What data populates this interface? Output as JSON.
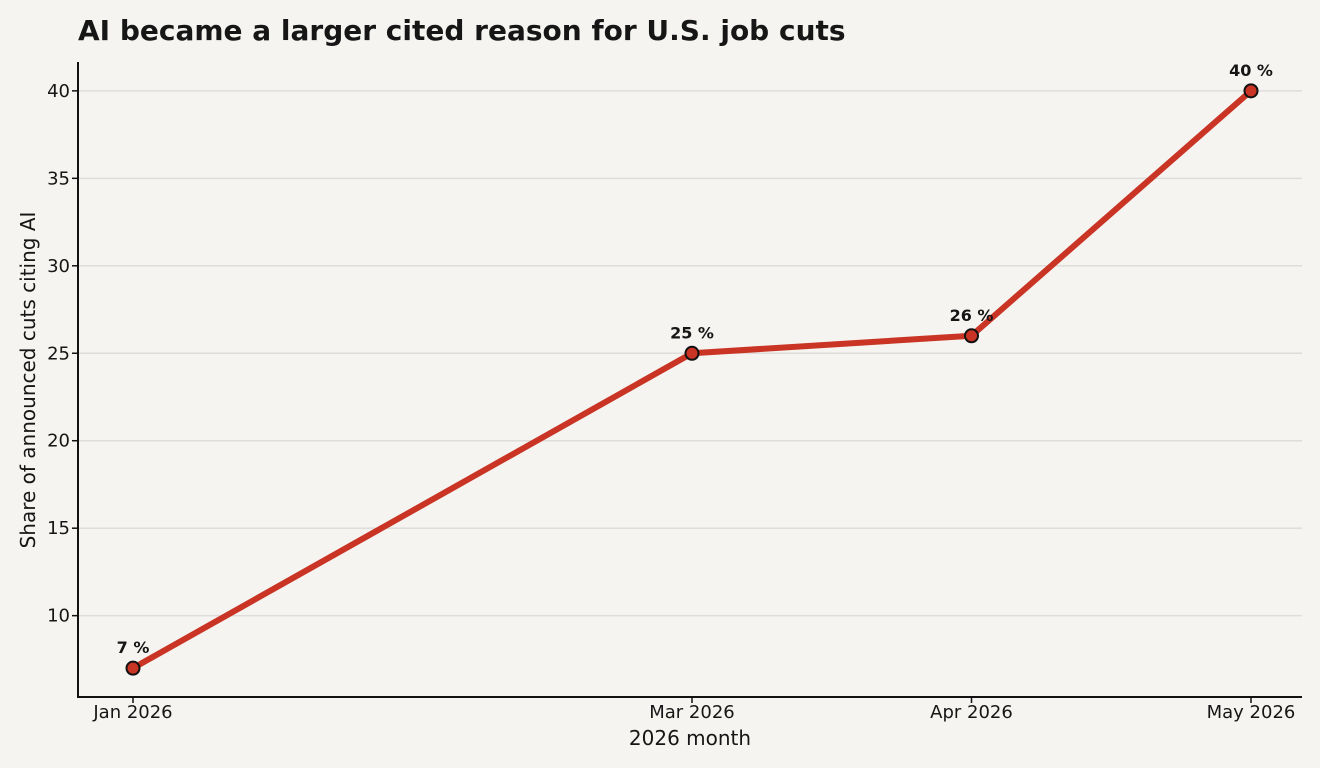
{
  "chart_data": {
    "type": "line",
    "title": "AI became a larger cited reason for U.S. job cuts",
    "xlabel": "2026 month",
    "ylabel": "Share of announced cuts citing AI",
    "categories": [
      "Jan 2026",
      "Mar 2026",
      "Apr 2026",
      "May 2026"
    ],
    "series": [
      {
        "values": [
          7,
          25,
          26,
          40
        ],
        "data_labels": [
          "7 %",
          "25 %",
          "26 %",
          "40 %"
        ]
      }
    ],
    "ylim": [
      5.35,
      41.65
    ],
    "yticks": [
      10,
      15,
      20,
      25,
      30,
      35,
      40
    ],
    "grid": "horizontal",
    "legend": "none"
  },
  "colors": {
    "line": "#c93425",
    "marker_fill": "#c93425",
    "marker_edge": "#111111",
    "background": "#f5f4f1"
  }
}
